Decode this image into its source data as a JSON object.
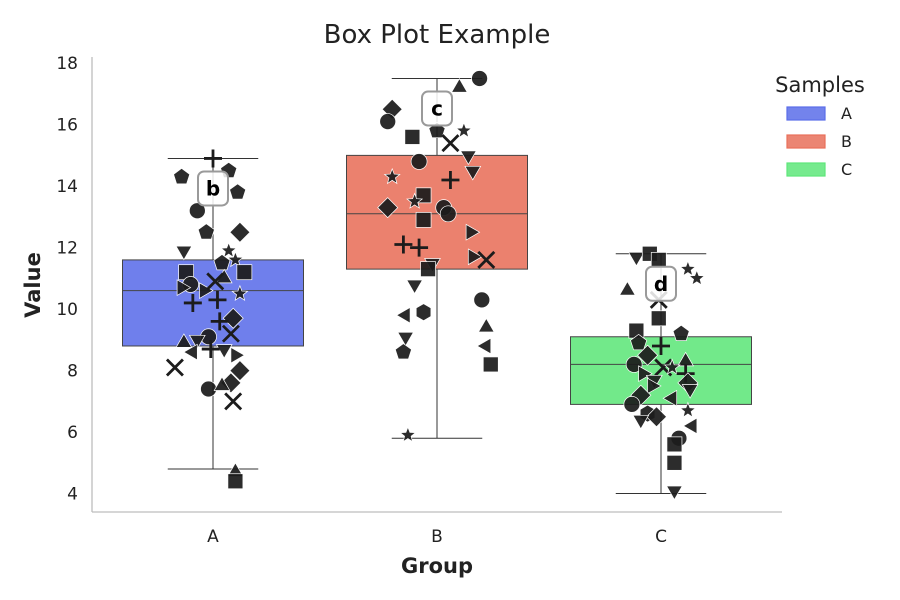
{
  "chart_data": {
    "type": "box",
    "title": "Box Plot Example",
    "xlabel": "Group",
    "ylabel": "Value",
    "categories": [
      "A",
      "B",
      "C"
    ],
    "ylim": [
      3.4,
      18.2
    ],
    "yticks": [
      4,
      6,
      8,
      10,
      12,
      14,
      16,
      18
    ],
    "grid": false,
    "legend": {
      "title": "Samples",
      "placement": "top-right",
      "entries": [
        "A",
        "B",
        "C"
      ]
    },
    "colors": {
      "A": "#5b6de9",
      "B": "#e8705a",
      "C": "#5ee67a",
      "points": "#1c1c1c"
    },
    "boxes": [
      {
        "group": "A",
        "whisker_low": 4.8,
        "q1": 8.8,
        "median": 10.6,
        "q3": 11.6,
        "whisker_high": 14.9,
        "letter": "b"
      },
      {
        "group": "B",
        "whisker_low": 5.8,
        "q1": 11.3,
        "median": 13.1,
        "q3": 15.0,
        "whisker_high": 17.5,
        "letter": "c"
      },
      {
        "group": "C",
        "whisker_low": 4.0,
        "q1": 6.9,
        "median": 8.2,
        "q3": 9.1,
        "whisker_high": 11.8,
        "letter": "d"
      }
    ],
    "points": {
      "A": [
        {
          "x": -0.07,
          "y": 13.2,
          "m": "circle"
        },
        {
          "x": 0.0,
          "y": 14.9,
          "m": "plus"
        },
        {
          "x": -0.14,
          "y": 14.3,
          "m": "pentagon"
        },
        {
          "x": 0.07,
          "y": 14.5,
          "m": "pentagon"
        },
        {
          "x": 0.11,
          "y": 13.8,
          "m": "pentagon"
        },
        {
          "x": -0.03,
          "y": 12.5,
          "m": "pentagon"
        },
        {
          "x": 0.12,
          "y": 12.5,
          "m": "diamond"
        },
        {
          "x": -0.13,
          "y": 11.9,
          "m": "triangle_down"
        },
        {
          "x": 0.07,
          "y": 11.9,
          "m": "star"
        },
        {
          "x": 0.1,
          "y": 11.6,
          "m": "star"
        },
        {
          "x": -0.12,
          "y": 11.2,
          "m": "square"
        },
        {
          "x": 0.14,
          "y": 11.2,
          "m": "square"
        },
        {
          "x": 0.04,
          "y": 11.5,
          "m": "pentagon"
        },
        {
          "x": -0.1,
          "y": 10.8,
          "m": "circle"
        },
        {
          "x": 0.05,
          "y": 11.0,
          "m": "triangle_up"
        },
        {
          "x": -0.04,
          "y": 10.6,
          "m": "triangle_right"
        },
        {
          "x": 0.01,
          "y": 10.9,
          "m": "x"
        },
        {
          "x": -0.14,
          "y": 10.7,
          "m": "triangle_right"
        },
        {
          "x": 0.12,
          "y": 10.5,
          "m": "star"
        },
        {
          "x": 0.02,
          "y": 10.3,
          "m": "plus"
        },
        {
          "x": 0.09,
          "y": 9.7,
          "m": "diamond"
        },
        {
          "x": -0.09,
          "y": 10.2,
          "m": "plus"
        },
        {
          "x": 0.03,
          "y": 9.6,
          "m": "plus"
        },
        {
          "x": -0.02,
          "y": 9.1,
          "m": "circle"
        },
        {
          "x": 0.08,
          "y": 9.2,
          "m": "x"
        },
        {
          "x": -0.07,
          "y": 9.0,
          "m": "triangle_down"
        },
        {
          "x": -0.13,
          "y": 8.9,
          "m": "triangle_up"
        },
        {
          "x": 0.05,
          "y": 8.7,
          "m": "triangle_down"
        },
        {
          "x": -0.01,
          "y": 8.7,
          "m": "plus"
        },
        {
          "x": -0.09,
          "y": 8.6,
          "m": "triangle_left"
        },
        {
          "x": 0.1,
          "y": 8.5,
          "m": "triangle_right"
        },
        {
          "x": -0.17,
          "y": 8.1,
          "m": "x"
        },
        {
          "x": 0.12,
          "y": 8.0,
          "m": "diamond"
        },
        {
          "x": 0.08,
          "y": 7.6,
          "m": "diamond"
        },
        {
          "x": -0.02,
          "y": 7.4,
          "m": "circle"
        },
        {
          "x": 0.04,
          "y": 7.5,
          "m": "triangle_up"
        },
        {
          "x": 0.09,
          "y": 7.0,
          "m": "x"
        },
        {
          "x": 0.1,
          "y": 4.7,
          "m": "triangle_up"
        },
        {
          "x": 0.1,
          "y": 4.4,
          "m": "square"
        }
      ],
      "B": [
        {
          "x": 0.19,
          "y": 17.5,
          "m": "circle"
        },
        {
          "x": 0.1,
          "y": 17.2,
          "m": "triangle_up"
        },
        {
          "x": -0.2,
          "y": 16.5,
          "m": "diamond"
        },
        {
          "x": -0.22,
          "y": 16.1,
          "m": "circle"
        },
        {
          "x": -0.11,
          "y": 15.6,
          "m": "square"
        },
        {
          "x": 0.0,
          "y": 15.8,
          "m": "pentagon"
        },
        {
          "x": 0.12,
          "y": 15.8,
          "m": "star"
        },
        {
          "x": 0.06,
          "y": 15.4,
          "m": "x"
        },
        {
          "x": 0.14,
          "y": 15.0,
          "m": "triangle_down"
        },
        {
          "x": -0.08,
          "y": 14.8,
          "m": "circle"
        },
        {
          "x": 0.16,
          "y": 14.5,
          "m": "triangle_down"
        },
        {
          "x": 0.06,
          "y": 14.2,
          "m": "plus"
        },
        {
          "x": -0.2,
          "y": 14.3,
          "m": "star"
        },
        {
          "x": -0.06,
          "y": 13.7,
          "m": "square"
        },
        {
          "x": -0.1,
          "y": 13.5,
          "m": "star"
        },
        {
          "x": 0.03,
          "y": 13.3,
          "m": "circle"
        },
        {
          "x": -0.22,
          "y": 13.3,
          "m": "diamond"
        },
        {
          "x": 0.05,
          "y": 13.1,
          "m": "circle"
        },
        {
          "x": -0.06,
          "y": 12.9,
          "m": "square"
        },
        {
          "x": 0.15,
          "y": 12.5,
          "m": "triangle_right"
        },
        {
          "x": -0.15,
          "y": 12.1,
          "m": "plus"
        },
        {
          "x": -0.08,
          "y": 12.0,
          "m": "plus"
        },
        {
          "x": 0.16,
          "y": 11.7,
          "m": "triangle_right"
        },
        {
          "x": 0.22,
          "y": 11.6,
          "m": "x"
        },
        {
          "x": -0.02,
          "y": 11.5,
          "m": "triangle_down"
        },
        {
          "x": -0.04,
          "y": 11.3,
          "m": "square"
        },
        {
          "x": -0.1,
          "y": 10.8,
          "m": "triangle_down"
        },
        {
          "x": 0.2,
          "y": 10.3,
          "m": "circle"
        },
        {
          "x": -0.06,
          "y": 9.9,
          "m": "hexagon"
        },
        {
          "x": -0.14,
          "y": 9.8,
          "m": "triangle_left"
        },
        {
          "x": 0.22,
          "y": 9.4,
          "m": "triangle_up"
        },
        {
          "x": 0.22,
          "y": 8.8,
          "m": "triangle_left"
        },
        {
          "x": -0.14,
          "y": 9.1,
          "m": "triangle_down"
        },
        {
          "x": -0.15,
          "y": 8.6,
          "m": "pentagon"
        },
        {
          "x": 0.24,
          "y": 8.2,
          "m": "square"
        },
        {
          "x": -0.13,
          "y": 5.9,
          "m": "star"
        }
      ],
      "C": [
        {
          "x": -0.11,
          "y": 11.7,
          "m": "triangle_down"
        },
        {
          "x": -0.05,
          "y": 11.8,
          "m": "square"
        },
        {
          "x": -0.01,
          "y": 11.6,
          "m": "square"
        },
        {
          "x": 0.12,
          "y": 11.3,
          "m": "star"
        },
        {
          "x": 0.16,
          "y": 11.0,
          "m": "star"
        },
        {
          "x": -0.15,
          "y": 10.6,
          "m": "triangle_up"
        },
        {
          "x": -0.01,
          "y": 10.3,
          "m": "x"
        },
        {
          "x": -0.01,
          "y": 9.7,
          "m": "square"
        },
        {
          "x": 0.09,
          "y": 9.2,
          "m": "pentagon"
        },
        {
          "x": -0.11,
          "y": 9.3,
          "m": "square"
        },
        {
          "x": -0.1,
          "y": 8.9,
          "m": "pentagon"
        },
        {
          "x": 0.0,
          "y": 8.8,
          "m": "plus"
        },
        {
          "x": -0.06,
          "y": 8.5,
          "m": "diamond"
        },
        {
          "x": 0.11,
          "y": 8.3,
          "m": "triangle_up"
        },
        {
          "x": 0.01,
          "y": 8.1,
          "m": "x"
        },
        {
          "x": -0.12,
          "y": 8.2,
          "m": "circle"
        },
        {
          "x": 0.05,
          "y": 8.1,
          "m": "star"
        },
        {
          "x": -0.08,
          "y": 7.9,
          "m": "triangle_right"
        },
        {
          "x": 0.11,
          "y": 7.9,
          "m": "plus"
        },
        {
          "x": -0.03,
          "y": 7.7,
          "m": "triangle_down"
        },
        {
          "x": 0.12,
          "y": 7.6,
          "m": "diamond"
        },
        {
          "x": -0.04,
          "y": 7.5,
          "m": "triangle_right"
        },
        {
          "x": 0.13,
          "y": 7.4,
          "m": "triangle_down"
        },
        {
          "x": -0.09,
          "y": 7.2,
          "m": "diamond"
        },
        {
          "x": 0.05,
          "y": 7.1,
          "m": "triangle_left"
        },
        {
          "x": -0.13,
          "y": 6.9,
          "m": "circle"
        },
        {
          "x": 0.12,
          "y": 6.7,
          "m": "star"
        },
        {
          "x": -0.06,
          "y": 6.6,
          "m": "hexagon"
        },
        {
          "x": -0.02,
          "y": 6.5,
          "m": "diamond"
        },
        {
          "x": -0.09,
          "y": 6.4,
          "m": "triangle_down"
        },
        {
          "x": 0.14,
          "y": 6.2,
          "m": "triangle_left"
        },
        {
          "x": 0.08,
          "y": 5.8,
          "m": "circle"
        },
        {
          "x": 0.06,
          "y": 5.6,
          "m": "square"
        },
        {
          "x": 0.06,
          "y": 5.0,
          "m": "square"
        },
        {
          "x": 0.06,
          "y": 4.1,
          "m": "triangle_down"
        }
      ]
    }
  }
}
